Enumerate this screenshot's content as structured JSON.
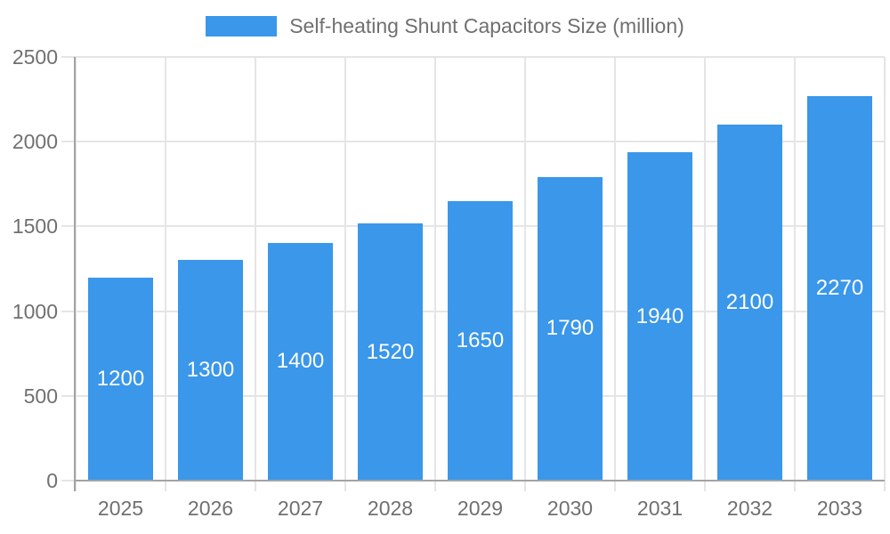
{
  "chart_data": {
    "type": "bar",
    "title": "Self-heating Shunt Capacitors Size (million)",
    "legend": {
      "label": "Self-heating Shunt Capacitors Size (million)",
      "position": "top"
    },
    "categories": [
      "2025",
      "2026",
      "2027",
      "2028",
      "2029",
      "2030",
      "2031",
      "2032",
      "2033"
    ],
    "series": [
      {
        "name": "Self-heating Shunt Capacitors Size (million)",
        "values": [
          1200,
          1300,
          1400,
          1520,
          1650,
          1790,
          1940,
          2100,
          2270
        ]
      }
    ],
    "value_labels_shown": true,
    "xlabel": "",
    "ylabel": "",
    "ylim": [
      0,
      2500
    ],
    "yticks": [
      0,
      500,
      1000,
      1500,
      2000,
      2500
    ],
    "grid": true,
    "colors": {
      "bar": "#3A97EA",
      "grid": "#e5e5e5",
      "axis": "#a3a3a3",
      "tick_text": "#707070",
      "value_text": "#ffffff",
      "background": "#ffffff"
    }
  }
}
